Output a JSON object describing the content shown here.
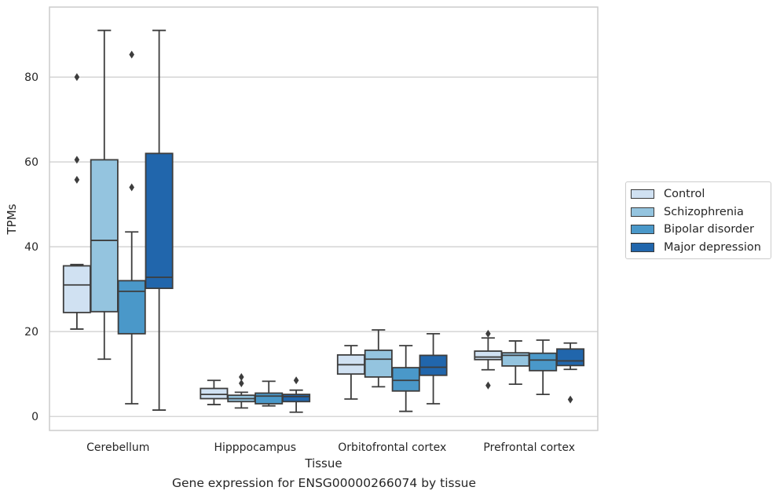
{
  "chart_data": {
    "type": "box",
    "xlabel": "Tissue",
    "ylabel": "TPMs",
    "caption": "Gene expression for ENSG00000266074 by tissue",
    "categories": [
      "Cerebellum",
      "Hipppocampus",
      "Orbitofrontal cortex",
      "Prefrontal cortex"
    ],
    "ylim": [
      -3.3,
      96.5
    ],
    "yticks": [
      0,
      20,
      40,
      60,
      80
    ],
    "grid": "horizontal",
    "legend_position": "right",
    "series": [
      {
        "name": "Control",
        "color": "#d0e1f2",
        "boxes": [
          {
            "whislo": 20.6,
            "q1": 24.5,
            "med": 31.0,
            "q3": 35.5,
            "whishi": 35.8,
            "fliers": [
              80.0,
              60.5,
              55.8
            ]
          },
          {
            "whislo": 2.8,
            "q1": 4.2,
            "med": 5.2,
            "q3": 6.6,
            "whishi": 8.5,
            "fliers": []
          },
          {
            "whislo": 4.1,
            "q1": 10.0,
            "med": 12.2,
            "q3": 14.5,
            "whishi": 16.7,
            "fliers": []
          },
          {
            "whislo": 11.0,
            "q1": 13.4,
            "med": 14.0,
            "q3": 15.4,
            "whishi": 18.5,
            "fliers": [
              19.5,
              7.3
            ]
          }
        ]
      },
      {
        "name": "Schizophrenia",
        "color": "#94c4df",
        "boxes": [
          {
            "whislo": 13.5,
            "q1": 24.7,
            "med": 41.5,
            "q3": 60.5,
            "whishi": 91.0,
            "fliers": []
          },
          {
            "whislo": 2.0,
            "q1": 3.5,
            "med": 4.2,
            "q3": 5.0,
            "whishi": 5.7,
            "fliers": [
              9.3,
              7.8
            ]
          },
          {
            "whislo": 7.0,
            "q1": 9.3,
            "med": 13.5,
            "q3": 15.6,
            "whishi": 20.4,
            "fliers": []
          },
          {
            "whislo": 7.6,
            "q1": 11.9,
            "med": 14.4,
            "q3": 15.0,
            "whishi": 17.8,
            "fliers": []
          }
        ]
      },
      {
        "name": "Bipolar disorder",
        "color": "#4a98c9",
        "boxes": [
          {
            "whislo": 3.0,
            "q1": 19.5,
            "med": 29.5,
            "q3": 32.0,
            "whishi": 43.5,
            "fliers": [
              85.3,
              54.0
            ]
          },
          {
            "whislo": 2.5,
            "q1": 3.0,
            "med": 4.8,
            "q3": 5.5,
            "whishi": 8.3,
            "fliers": []
          },
          {
            "whislo": 1.2,
            "q1": 6.0,
            "med": 8.5,
            "q3": 11.5,
            "whishi": 16.7,
            "fliers": []
          },
          {
            "whislo": 5.2,
            "q1": 10.8,
            "med": 13.3,
            "q3": 14.9,
            "whishi": 18.0,
            "fliers": []
          }
        ]
      },
      {
        "name": "Major depression",
        "color": "#2166ac",
        "boxes": [
          {
            "whislo": 1.5,
            "q1": 30.2,
            "med": 32.8,
            "q3": 62.0,
            "whishi": 91.0,
            "fliers": []
          },
          {
            "whislo": 1.0,
            "q1": 3.5,
            "med": 4.7,
            "q3": 5.2,
            "whishi": 6.2,
            "fliers": [
              8.5
            ]
          },
          {
            "whislo": 3.0,
            "q1": 9.7,
            "med": 11.6,
            "q3": 14.4,
            "whishi": 19.5,
            "fliers": []
          },
          {
            "whislo": 11.1,
            "q1": 12.0,
            "med": 13.1,
            "q3": 15.9,
            "whishi": 17.3,
            "fliers": [
              4.0
            ]
          }
        ]
      }
    ]
  }
}
